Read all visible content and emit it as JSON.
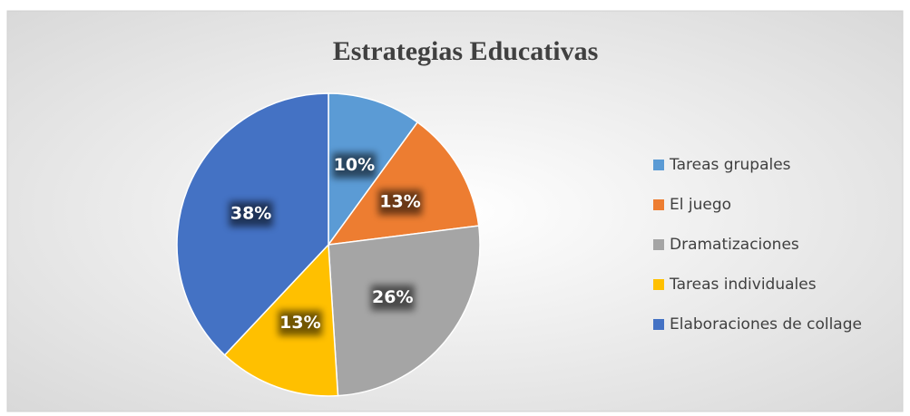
{
  "chart_data": {
    "type": "pie",
    "title": "Estrategias Educativas",
    "categories": [
      "Tareas grupales",
      "El juego",
      "Dramatizaciones",
      "Tareas individuales",
      "Elaboraciones de collage"
    ],
    "values": [
      10,
      13,
      26,
      13,
      38
    ],
    "value_labels": [
      "10%",
      "13%",
      "26%",
      "13%",
      "38%"
    ],
    "colors": [
      "#5b9bd5",
      "#ed7d31",
      "#a5a5a5",
      "#ffc000",
      "#4472c4"
    ],
    "legend": "right"
  }
}
